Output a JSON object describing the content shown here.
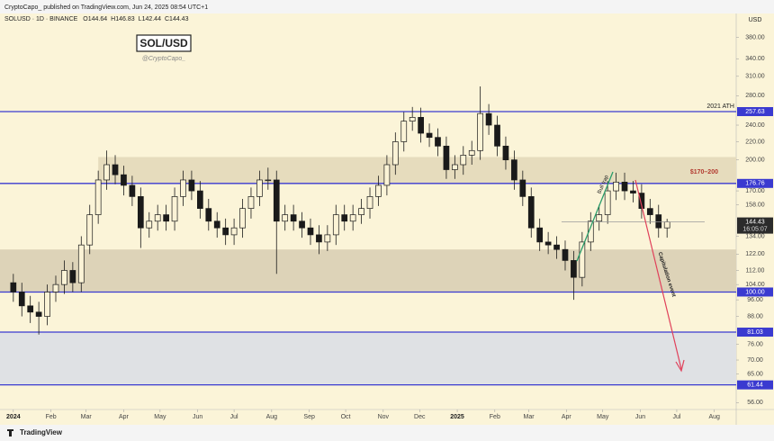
{
  "header": {
    "published": "CryptoCapo_ published on TradingView.com, Jun 24, 2025 08:54 UTC+1"
  },
  "footer": {
    "brand": "TradingView"
  },
  "chart_data": {
    "type": "candlestick",
    "symbol_line": "SOLUSD · 1D · BINANCE",
    "ohlc_legend": [
      {
        "prefix": "O",
        "value": 144.64
      },
      {
        "prefix": "H",
        "value": 146.83
      },
      {
        "prefix": "L",
        "value": 142.44
      },
      {
        "prefix": "C",
        "value": 144.43
      }
    ],
    "title": "SOL/USD",
    "subtitle": "@CryptoCapo_",
    "currency": "USD",
    "log_scale": true,
    "grid": false,
    "up_color": "#fbf3d6",
    "down_color": "#1a1a1a",
    "wick_color": "#1a1a1a",
    "x": [
      0,
      7,
      14,
      21,
      28,
      35,
      42,
      49,
      56,
      63,
      70,
      77,
      84,
      91,
      98,
      105,
      112,
      119,
      126,
      133,
      140,
      147,
      154,
      161,
      168,
      175,
      182,
      189,
      196,
      203,
      210,
      217,
      224,
      231,
      238,
      245,
      252,
      259,
      266,
      273,
      280,
      287,
      294,
      301,
      308,
      315,
      322,
      329,
      336,
      343,
      350,
      357,
      364,
      371,
      378,
      385,
      392,
      399,
      406,
      413,
      420,
      427,
      434,
      441,
      448,
      455,
      462,
      469,
      476,
      483,
      490,
      497,
      504,
      511,
      518,
      525,
      532,
      539
    ],
    "open": [
      105,
      100,
      93,
      90,
      88,
      100,
      104,
      112,
      105,
      128,
      150,
      180,
      195,
      185,
      175,
      165,
      140,
      145,
      150,
      145,
      165,
      180,
      170,
      155,
      145,
      140,
      135,
      140,
      155,
      165,
      180,
      180,
      145,
      150,
      145,
      140,
      135,
      130,
      135,
      150,
      145,
      150,
      155,
      165,
      175,
      195,
      220,
      245,
      250,
      230,
      225,
      215,
      190,
      195,
      205,
      210,
      255,
      240,
      215,
      200,
      180,
      165,
      140,
      130,
      128,
      125,
      118,
      108,
      130,
      145,
      150,
      170,
      178,
      170,
      168,
      155,
      150,
      140
    ],
    "high": [
      110,
      105,
      98,
      95,
      104,
      109,
      118,
      117,
      134,
      158,
      189,
      210,
      205,
      194,
      184,
      173,
      152,
      158,
      158,
      173,
      189,
      189,
      179,
      163,
      152,
      147,
      147,
      163,
      173,
      189,
      192,
      189,
      158,
      158,
      152,
      147,
      142,
      142,
      158,
      158,
      158,
      163,
      173,
      184,
      205,
      231,
      257,
      264,
      263,
      242,
      236,
      226,
      205,
      215,
      221,
      294,
      268,
      252,
      226,
      210,
      189,
      173,
      147,
      137,
      134,
      131,
      124,
      137,
      152,
      158,
      179,
      187,
      187,
      179,
      176,
      163,
      158,
      146.83
    ],
    "low": [
      95,
      88,
      85,
      80,
      84,
      95,
      99,
      100,
      100,
      122,
      143,
      171,
      176,
      166,
      157,
      126,
      133,
      138,
      138,
      138,
      157,
      162,
      147,
      138,
      133,
      128,
      128,
      133,
      147,
      157,
      171,
      110,
      138,
      138,
      133,
      128,
      122,
      124,
      128,
      138,
      138,
      143,
      147,
      157,
      166,
      185,
      209,
      233,
      219,
      214,
      204,
      181,
      181,
      185,
      195,
      200,
      228,
      204,
      190,
      171,
      157,
      133,
      124,
      122,
      119,
      112,
      96,
      103,
      124,
      138,
      143,
      162,
      162,
      160,
      147,
      143,
      133,
      133
    ],
    "close": [
      100,
      93,
      90,
      88,
      100,
      104,
      112,
      105,
      128,
      150,
      180,
      195,
      185,
      175,
      165,
      140,
      145,
      150,
      145,
      165,
      180,
      170,
      155,
      145,
      140,
      135,
      140,
      155,
      165,
      180,
      180,
      145,
      150,
      145,
      140,
      135,
      130,
      135,
      150,
      145,
      150,
      155,
      165,
      175,
      195,
      220,
      245,
      250,
      230,
      225,
      215,
      190,
      195,
      205,
      210,
      255,
      240,
      215,
      200,
      180,
      165,
      140,
      130,
      128,
      125,
      118,
      108,
      130,
      145,
      150,
      170,
      178,
      170,
      168,
      155,
      150,
      140,
      144.43
    ],
    "xlim": [
      -11,
      596
    ],
    "xticks": [
      {
        "value": 0,
        "label": "2024"
      },
      {
        "value": 31,
        "label": "Feb"
      },
      {
        "value": 60,
        "label": "Mar"
      },
      {
        "value": 91,
        "label": "Apr"
      },
      {
        "value": 121,
        "label": "May"
      },
      {
        "value": 152,
        "label": "Jun"
      },
      {
        "value": 182,
        "label": "Jul"
      },
      {
        "value": 213,
        "label": "Aug"
      },
      {
        "value": 244,
        "label": "Sep"
      },
      {
        "value": 274,
        "label": "Oct"
      },
      {
        "value": 305,
        "label": "Nov"
      },
      {
        "value": 335,
        "label": "Dec"
      },
      {
        "value": 366,
        "label": "2025"
      },
      {
        "value": 397,
        "label": "Feb"
      },
      {
        "value": 425,
        "label": "Mar"
      },
      {
        "value": 456,
        "label": "Apr"
      },
      {
        "value": 486,
        "label": "May"
      },
      {
        "value": 517,
        "label": "Jun"
      },
      {
        "value": 547,
        "label": "Jul"
      },
      {
        "value": 578,
        "label": "Aug"
      }
    ],
    "ylim": [
      54,
      431
    ],
    "yticks": [
      {
        "value": 380,
        "label": "380.00"
      },
      {
        "value": 340,
        "label": "340.00"
      },
      {
        "value": 310,
        "label": "310.00"
      },
      {
        "value": 280,
        "label": "280.00"
      },
      {
        "value": 240,
        "label": "240.00"
      },
      {
        "value": 220,
        "label": "220.00"
      },
      {
        "value": 200,
        "label": "200.00"
      },
      {
        "value": 170,
        "label": "170.00"
      },
      {
        "value": 158,
        "label": "158.00"
      },
      {
        "value": 134,
        "label": "134.00"
      },
      {
        "value": 122,
        "label": "122.00"
      },
      {
        "value": 112,
        "label": "112.00"
      },
      {
        "value": 104,
        "label": "104.00"
      },
      {
        "value": 96,
        "label": "96.00"
      },
      {
        "value": 88,
        "label": "88.00"
      },
      {
        "value": 76,
        "label": "76.00"
      },
      {
        "value": 70,
        "label": "70.00"
      },
      {
        "value": 65,
        "label": "65.00"
      },
      {
        "value": 56,
        "label": "56.00"
      }
    ],
    "zones": [
      {
        "low": 176.76,
        "high": 203,
        "start": 70,
        "color": "#e6dcbd"
      },
      {
        "low": 100,
        "high": 125,
        "start": -11,
        "color": "#ddd3b8"
      },
      {
        "low": 61.44,
        "high": 81.03,
        "start": -11,
        "color": "#dfe1e4"
      }
    ],
    "level_color": "#3a3ad0",
    "levels": [
      257.63,
      176.76,
      {
        "value": 100,
        "label": "100.00"
      },
      81.03,
      61.44
    ],
    "price_line": {
      "value": 144.43,
      "start": 452,
      "end": 570,
      "countdown": "16:05:07",
      "color": "#9a9a9a"
    },
    "annotations": {
      "ath": "2021 ATH",
      "range": "$170–200",
      "range_color": "#b23a30",
      "bull_trap": "Bull trap",
      "bull_color": "#2a9d6a",
      "capitulation": "Capitulation event",
      "arrow_color": "#e0405a"
    }
  }
}
